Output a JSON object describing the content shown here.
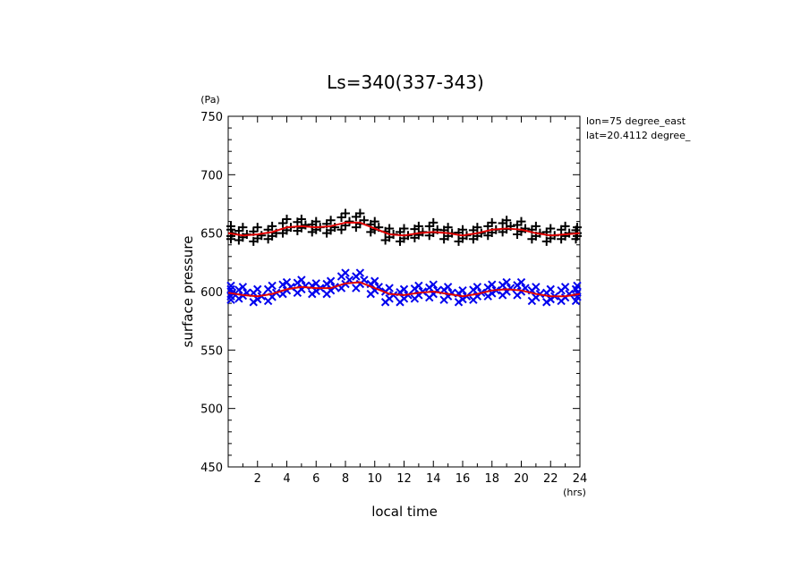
{
  "chart_data": {
    "type": "scatter",
    "title": "Ls=340(337-343)",
    "xlabel": "local time",
    "xunit": "(hrs)",
    "ylabel": "surface pressure",
    "yunit": "(Pa)",
    "xlim": [
      0,
      24
    ],
    "ylim": [
      450,
      750
    ],
    "xticks": [
      2,
      4,
      6,
      8,
      10,
      12,
      14,
      16,
      18,
      20,
      22,
      24
    ],
    "yticks": [
      450,
      500,
      550,
      600,
      650,
      700,
      750
    ],
    "annotations": [
      "lon=75 degree_east",
      "lat=20.4112 degree_"
    ],
    "series": [
      {
        "marker": "plus",
        "color": "#000000",
        "fit_color": "#e00000",
        "x": [
          0,
          1,
          2,
          3,
          4,
          5,
          6,
          7,
          8,
          9,
          10,
          11,
          12,
          13,
          14,
          15,
          16,
          17,
          18,
          19,
          20,
          21,
          22,
          23,
          24
        ],
        "y": [
          650,
          649,
          648,
          650,
          655,
          657,
          655,
          655,
          660,
          661,
          655,
          649,
          648,
          651,
          653,
          650,
          648,
          650,
          653,
          656,
          654,
          650,
          648,
          650,
          650
        ],
        "spread": [
          [
            645,
            656
          ],
          [
            644,
            655
          ],
          [
            643,
            655
          ],
          [
            645,
            656
          ],
          [
            650,
            662
          ],
          [
            652,
            662
          ],
          [
            651,
            660
          ],
          [
            650,
            661
          ],
          [
            653,
            667
          ],
          [
            655,
            667
          ],
          [
            651,
            660
          ],
          [
            644,
            654
          ],
          [
            643,
            654
          ],
          [
            646,
            656
          ],
          [
            648,
            659
          ],
          [
            645,
            655
          ],
          [
            643,
            653
          ],
          [
            645,
            655
          ],
          [
            648,
            659
          ],
          [
            651,
            661
          ],
          [
            649,
            660
          ],
          [
            645,
            656
          ],
          [
            643,
            654
          ],
          [
            645,
            656
          ],
          [
            645,
            655
          ]
        ],
        "fit": [
          650,
          648,
          649,
          651,
          655,
          656,
          655,
          656,
          659,
          659,
          654,
          649,
          648,
          650,
          651,
          650,
          648,
          650,
          653,
          654,
          653,
          650,
          648,
          649,
          650
        ]
      },
      {
        "marker": "cross",
        "color": "#0000ee",
        "fit_color": "#e00000",
        "x": [
          0,
          1,
          2,
          3,
          4,
          5,
          6,
          7,
          8,
          9,
          10,
          11,
          12,
          13,
          14,
          15,
          16,
          17,
          18,
          19,
          20,
          21,
          22,
          23,
          24
        ],
        "y": [
          599,
          599,
          596,
          599,
          604,
          605,
          603,
          604,
          610,
          610,
          604,
          597,
          597,
          600,
          601,
          599,
          596,
          599,
          601,
          603,
          603,
          598,
          596,
          598,
          599
        ],
        "spread": [
          [
            593,
            605
          ],
          [
            594,
            604
          ],
          [
            591,
            602
          ],
          [
            592,
            605
          ],
          [
            598,
            608
          ],
          [
            599,
            610
          ],
          [
            598,
            607
          ],
          [
            598,
            609
          ],
          [
            603,
            616
          ],
          [
            603,
            616
          ],
          [
            598,
            609
          ],
          [
            591,
            603
          ],
          [
            591,
            602
          ],
          [
            594,
            605
          ],
          [
            595,
            606
          ],
          [
            593,
            604
          ],
          [
            591,
            601
          ],
          [
            593,
            604
          ],
          [
            596,
            606
          ],
          [
            597,
            608
          ],
          [
            597,
            608
          ],
          [
            592,
            604
          ],
          [
            591,
            602
          ],
          [
            592,
            604
          ],
          [
            592,
            605
          ]
        ],
        "fit": [
          599,
          597,
          596,
          598,
          602,
          604,
          603,
          603,
          607,
          608,
          603,
          598,
          597,
          599,
          600,
          598,
          596,
          598,
          601,
          602,
          601,
          598,
          596,
          596,
          598
        ]
      }
    ]
  }
}
